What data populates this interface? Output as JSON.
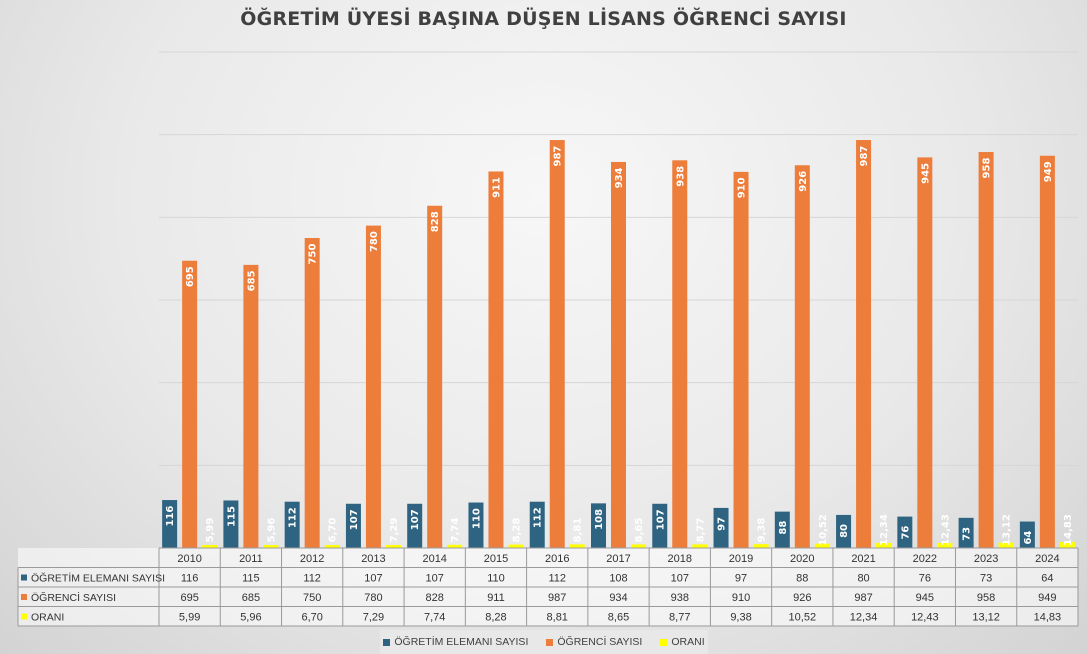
{
  "chart_data": {
    "type": "bar",
    "title": "ÖĞRETİM ÜYESİ BAŞINA DÜŞEN LİSANS ÖĞRENCİ SAYISI",
    "categories": [
      "2010",
      "2011",
      "2012",
      "2013",
      "2014",
      "2015",
      "2016",
      "2017",
      "2018",
      "2019",
      "2020",
      "2021",
      "2022",
      "2023",
      "2024"
    ],
    "series": [
      {
        "name": "ÖĞRETİM ELEMANI SAYISI",
        "color": "#2e6482",
        "values": [
          116,
          115,
          112,
          107,
          107,
          110,
          112,
          108,
          107,
          97,
          88,
          80,
          76,
          73,
          64
        ],
        "labels": [
          "116",
          "115",
          "112",
          "107",
          "107",
          "110",
          "112",
          "108",
          "107",
          "97",
          "88",
          "80",
          "76",
          "73",
          "64"
        ]
      },
      {
        "name": "ÖĞRENCİ SAYISI",
        "color": "#ed7d3a",
        "values": [
          695,
          685,
          750,
          780,
          828,
          911,
          987,
          934,
          938,
          910,
          926,
          987,
          945,
          958,
          949
        ],
        "labels": [
          "695",
          "685",
          "750",
          "780",
          "828",
          "911",
          "987",
          "934",
          "938",
          "910",
          "926",
          "987",
          "945",
          "958",
          "949"
        ]
      },
      {
        "name": "ORANI",
        "color": "#ffff00",
        "values": [
          5.99,
          5.96,
          6.7,
          7.29,
          7.74,
          8.28,
          8.81,
          8.65,
          8.77,
          9.38,
          10.52,
          12.34,
          12.43,
          13.12,
          14.83
        ],
        "labels": [
          "5,99",
          "5,96",
          "6,70",
          "7,29",
          "7,74",
          "8,28",
          "8,81",
          "8,65",
          "8,77",
          "9,38",
          "10,52",
          "12,34",
          "12,43",
          "13,12",
          "14,83"
        ]
      }
    ],
    "ylim": [
      0,
      1200
    ],
    "grid": true,
    "legend": "bottom",
    "data_table": true
  }
}
